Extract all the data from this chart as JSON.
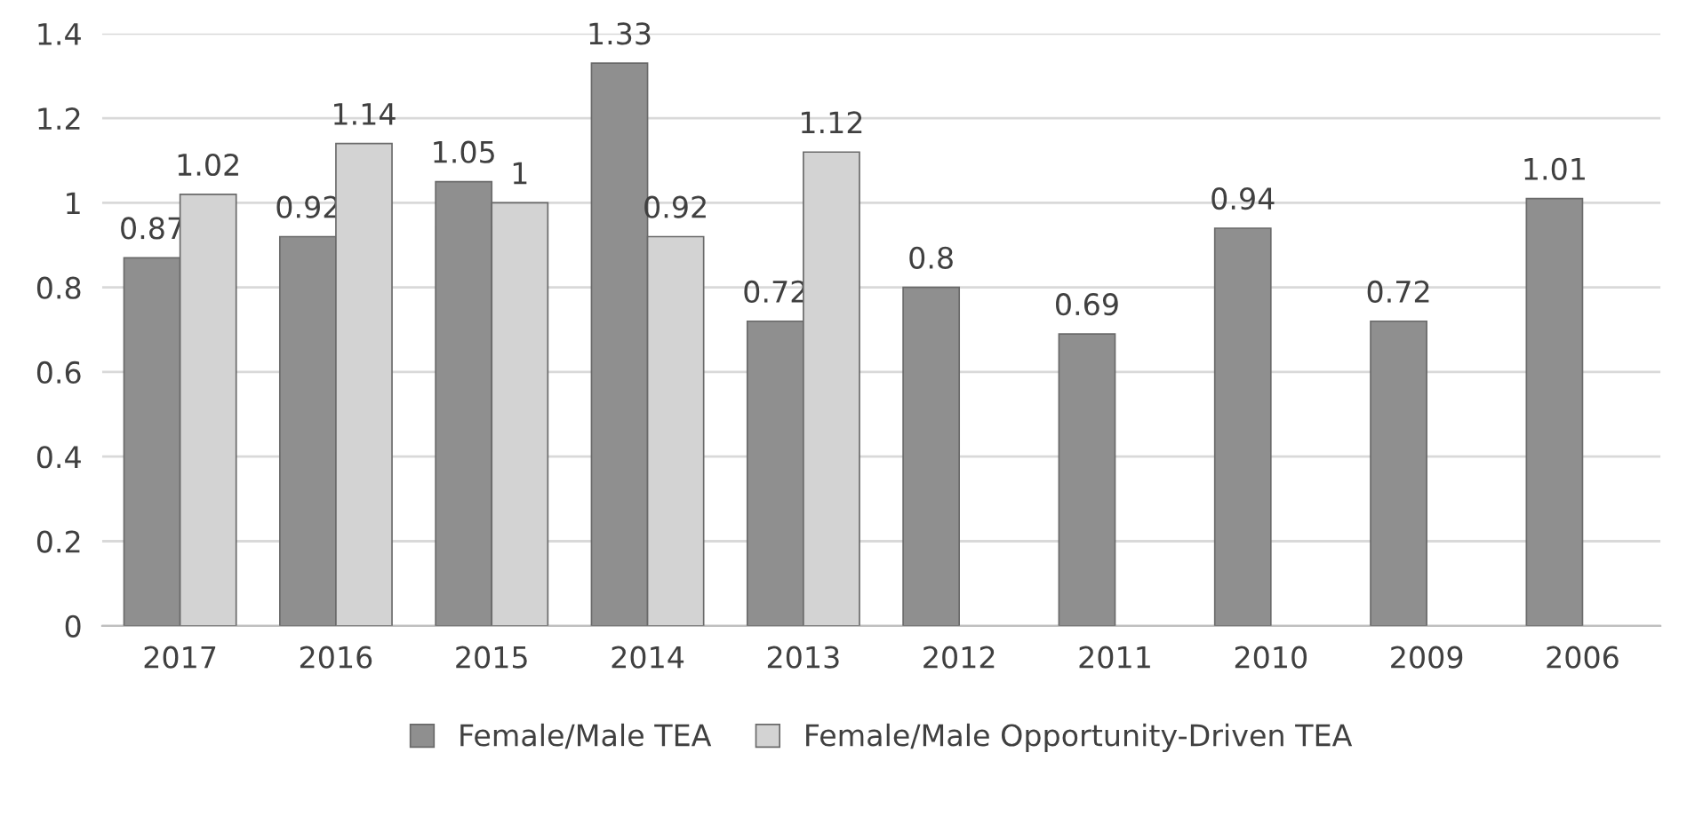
{
  "chart_data": {
    "type": "bar",
    "categories": [
      "2017",
      "2016",
      "2015",
      "2014",
      "2013",
      "2012",
      "2011",
      "2010",
      "2009",
      "2006"
    ],
    "series": [
      {
        "name": "Female/Male TEA",
        "color": "#8f8f8f",
        "values": [
          0.87,
          0.92,
          1.05,
          1.33,
          0.72,
          0.8,
          0.69,
          0.94,
          0.72,
          1.01
        ]
      },
      {
        "name": "Female/Male Opportunity-Driven TEA",
        "color": "#d3d3d3",
        "values": [
          1.02,
          1.14,
          1,
          0.92,
          1.12,
          null,
          null,
          null,
          null,
          null
        ]
      }
    ],
    "ylim": [
      0,
      1.4
    ],
    "yticks": [
      0,
      0.2,
      0.4,
      0.6,
      0.8,
      1,
      1.2,
      1.4
    ],
    "grid": "y",
    "legend": "bottom",
    "data_labels": true
  }
}
